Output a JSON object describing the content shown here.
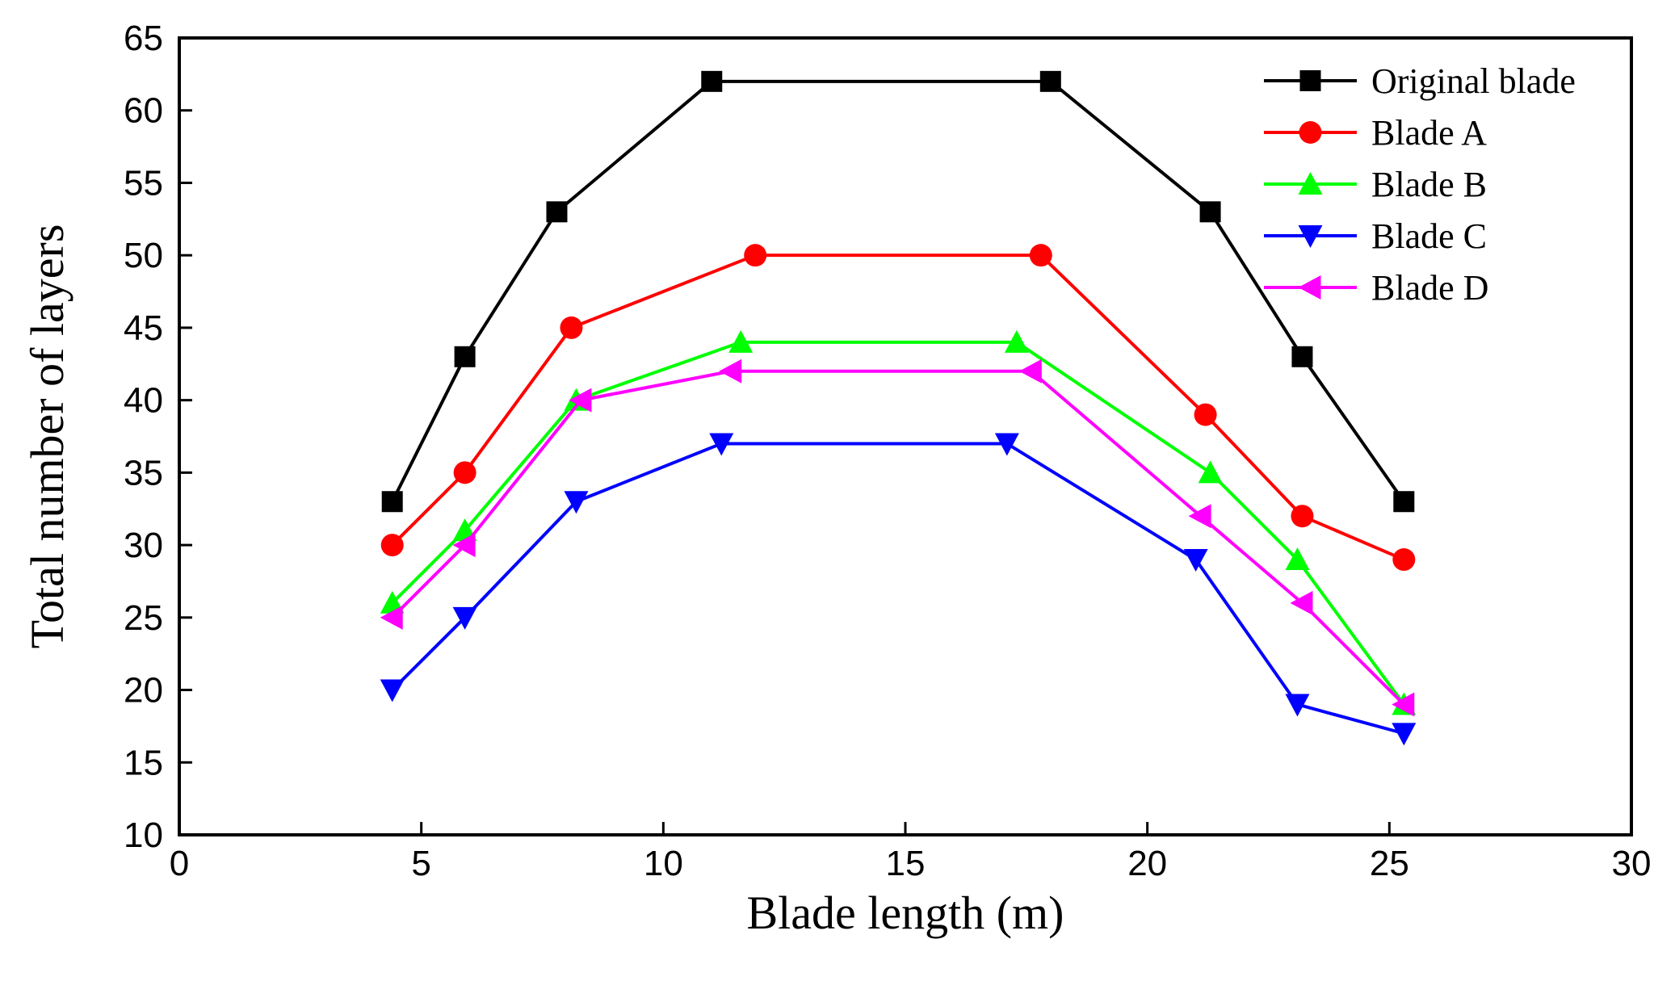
{
  "chart_data": {
    "type": "line",
    "title": "",
    "xlabel": "Blade length (m)",
    "ylabel": "Total number of layers",
    "xlim": [
      0,
      30
    ],
    "ylim": [
      10,
      65
    ],
    "xticks": [
      0,
      5,
      10,
      15,
      20,
      25,
      30
    ],
    "yticks": [
      10,
      15,
      20,
      25,
      30,
      35,
      40,
      45,
      50,
      55,
      60,
      65
    ],
    "grid": false,
    "legend_position": "top-right",
    "series": [
      {
        "name": "Original blade",
        "color": "#000000",
        "marker": "square",
        "x": [
          4.4,
          5.9,
          7.8,
          11.0,
          18.0,
          21.3,
          23.2,
          25.3
        ],
        "y": [
          33,
          43,
          53,
          62,
          62,
          53,
          43,
          33
        ]
      },
      {
        "name": "Blade A",
        "color": "#ff0000",
        "marker": "circle",
        "x": [
          4.4,
          5.9,
          8.1,
          11.9,
          17.8,
          21.2,
          23.2,
          25.3
        ],
        "y": [
          30,
          35,
          45,
          50,
          50,
          39,
          32,
          29
        ]
      },
      {
        "name": "Blade B",
        "color": "#00ff00",
        "marker": "triangle-up",
        "x": [
          4.4,
          5.9,
          8.2,
          11.6,
          17.3,
          21.3,
          23.1,
          25.3
        ],
        "y": [
          26,
          31,
          40,
          44,
          44,
          35,
          29,
          19
        ]
      },
      {
        "name": "Blade C",
        "color": "#0000ff",
        "marker": "triangle-down",
        "x": [
          4.4,
          5.9,
          8.2,
          11.2,
          17.1,
          21.0,
          23.1,
          25.3
        ],
        "y": [
          20,
          25,
          33,
          37,
          37,
          29,
          19,
          17
        ]
      },
      {
        "name": "Blade D",
        "color": "#ff00ff",
        "marker": "triangle-left",
        "x": [
          4.4,
          5.9,
          8.3,
          11.4,
          17.6,
          21.1,
          23.2,
          25.3
        ],
        "y": [
          25,
          30,
          40,
          42,
          42,
          32,
          26,
          19
        ]
      }
    ]
  }
}
